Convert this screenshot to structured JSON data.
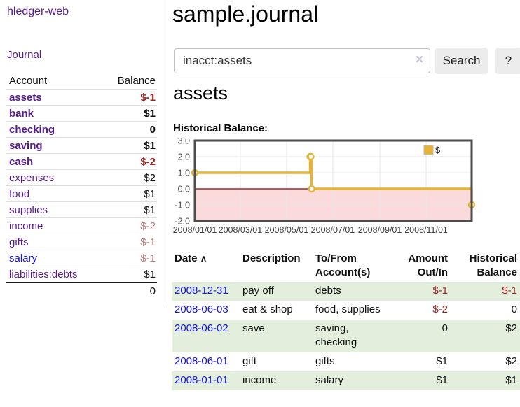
{
  "colors": {
    "purple": "#551a8b",
    "blue": "#1414e0",
    "negStrong": "#992222",
    "negMuted": "#bb7b7b",
    "stripe": "#e3efdc",
    "chartLine": "#e4b338",
    "chartNegRegion": "#fadada",
    "chartZeroLine": "#8b0000"
  },
  "sidebar": {
    "brand": "hledger-web",
    "journal_link": "Journal",
    "headers": {
      "account": "Account",
      "balance": "Balance"
    },
    "accounts": [
      {
        "name": "assets",
        "balance": "$-1"
      },
      {
        "name": "bank",
        "balance": "$1"
      },
      {
        "name": "checking",
        "balance": "0"
      },
      {
        "name": "saving",
        "balance": "$1"
      },
      {
        "name": "cash",
        "balance": "$-2"
      },
      {
        "name": "expenses",
        "balance": "$2"
      },
      {
        "name": "food",
        "balance": "$1"
      },
      {
        "name": "supplies",
        "balance": "$1"
      },
      {
        "name": "income",
        "balance": "$-2"
      },
      {
        "name": "gifts",
        "balance": "$-1"
      },
      {
        "name": "salary",
        "balance": "$-1"
      },
      {
        "name": "liabilities:debts",
        "balance": "$1"
      }
    ],
    "total": "0"
  },
  "main": {
    "title": "sample.journal",
    "search": {
      "value": "inacct:assets",
      "clear_icon": "×",
      "button_label": "Search",
      "help_label": "?"
    },
    "account_heading": "assets",
    "chart_heading": "Historical Balance:",
    "chart": {
      "chart_data": {
        "type": "line",
        "step": true,
        "title": "Historical Balance:",
        "legend": {
          "label": "$",
          "position": "top-right"
        },
        "x_range": [
          "2008-01-01",
          "2008-12-31"
        ],
        "ylim": [
          -2,
          3
        ],
        "y_ticks": [
          "3.0",
          "2.0",
          "1.0",
          "0.0",
          "-1.0",
          "-2.0"
        ],
        "x_ticks": [
          "2008/01/01",
          "2008/03/01",
          "2008/05/01",
          "2008/07/01",
          "2008/09/01",
          "2008/11/01"
        ],
        "series": [
          {
            "name": "$",
            "points": [
              [
                "2008-01-01",
                1
              ],
              [
                "2008-06-01",
                2
              ],
              [
                "2008-06-02",
                2
              ],
              [
                "2008-06-03",
                0
              ],
              [
                "2008-12-31",
                -1
              ]
            ]
          }
        ],
        "grid": true
      }
    },
    "register": {
      "headers": {
        "date": "Date",
        "sort_icon": "∧",
        "description": "Description",
        "accounts": "To/From\nAccount(s)",
        "amount": "Amount\nOut/In",
        "balance": "Historical\nBalance"
      },
      "rows": [
        {
          "date": "2008-12-31",
          "description": "pay off",
          "accounts": "debts",
          "amount": "$-1",
          "balance": "$-1"
        },
        {
          "date": "2008-06-03",
          "description": "eat & shop",
          "accounts": "food, supplies",
          "amount": "$-2",
          "balance": "0"
        },
        {
          "date": "2008-06-02",
          "description": "save",
          "accounts": "saving, checking",
          "amount": "0",
          "balance": "$2"
        },
        {
          "date": "2008-06-01",
          "description": "gift",
          "accounts": "gifts",
          "amount": "$1",
          "balance": "$2"
        },
        {
          "date": "2008-01-01",
          "description": "income",
          "accounts": "salary",
          "amount": "$1",
          "balance": "$1"
        }
      ]
    }
  }
}
